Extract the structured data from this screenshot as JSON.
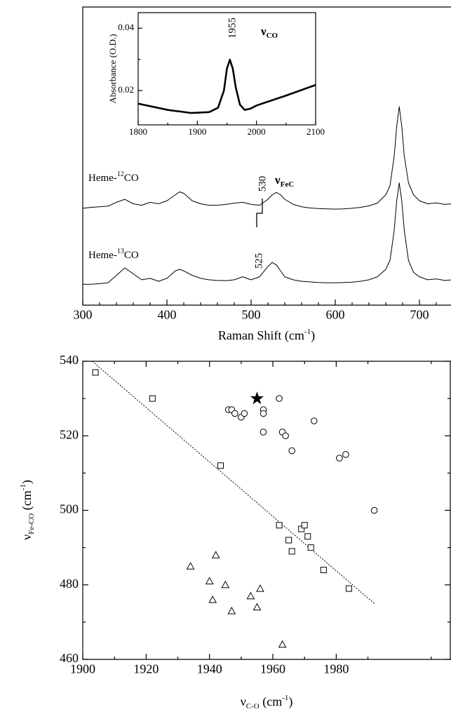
{
  "chart_data": [
    {
      "type": "line",
      "xlabel": {
        "text": "Raman Shift (cm",
        "sup": "-1",
        "end": ")"
      },
      "xlim": [
        300,
        780
      ],
      "ylim": [
        0,
        100
      ],
      "xticks": [
        300,
        400,
        500,
        600,
        700
      ],
      "xminorticks": [
        320,
        340,
        360,
        380,
        420,
        440,
        460,
        480,
        520,
        540,
        560,
        580,
        620,
        640,
        660,
        680,
        720,
        740,
        760
      ],
      "x": [
        300,
        310,
        320,
        330,
        340,
        350,
        360,
        370,
        380,
        390,
        400,
        410,
        415,
        420,
        430,
        440,
        450,
        460,
        470,
        480,
        490,
        500,
        510,
        520,
        525,
        530,
        535,
        540,
        550,
        560,
        570,
        580,
        590,
        600,
        610,
        620,
        630,
        640,
        650,
        660,
        665,
        670,
        673,
        676,
        679,
        682,
        687,
        693,
        700,
        710,
        720,
        730,
        740,
        745,
        750,
        755,
        760,
        765,
        770,
        780
      ],
      "series": [
        {
          "color": "#000000",
          "label": {
            "prefix": "Heme-",
            "sup": "12",
            "suffix": "CO"
          },
          "values": [
            32.5,
            32.8,
            33,
            33.2,
            34.5,
            35.5,
            34,
            33.5,
            34.5,
            34,
            35,
            37,
            38,
            37.5,
            35,
            34,
            33.5,
            33.5,
            33.8,
            34.2,
            34.5,
            33.8,
            33.5,
            35.5,
            37,
            37.8,
            37,
            35.5,
            33.8,
            33,
            32.6,
            32.4,
            32.3,
            32.2,
            32.3,
            32.5,
            32.8,
            33.3,
            34.2,
            37,
            40,
            50,
            60,
            66.6,
            60,
            50,
            41,
            37,
            35,
            34,
            34.3,
            33.8,
            34,
            35,
            38,
            40.7,
            37,
            35,
            34,
            33.8
          ]
        },
        {
          "color": "#000000",
          "label": {
            "prefix": "Heme-",
            "sup": "13",
            "suffix": "CO"
          },
          "values": [
            7,
            7,
            7.2,
            7.5,
            10,
            12.5,
            10.5,
            8.5,
            9,
            8,
            9,
            11.5,
            12,
            11.5,
            10,
            9,
            8.5,
            8.3,
            8.2,
            8.5,
            9.5,
            8.5,
            9.5,
            13,
            14.3,
            13.5,
            11.5,
            9.5,
            8.5,
            8,
            7.8,
            7.6,
            7.5,
            7.5,
            7.6,
            7.7,
            8,
            8.5,
            9.5,
            12,
            15,
            25,
            35,
            41,
            35,
            25,
            15,
            11,
            9.5,
            8.5,
            8.8,
            8.3,
            8.5,
            9.5,
            11,
            12.5,
            10,
            8.5,
            8,
            8
          ]
        }
      ],
      "annotations": [
        "530",
        "525"
      ],
      "band_label": {
        "symbol": "ν",
        "sub": "FeC"
      }
    },
    {
      "type": "line",
      "ylabel": "Absorbance (O.D.)",
      "xlim": [
        1800,
        2100
      ],
      "ylim": [
        0.009,
        0.045
      ],
      "xticks": [
        1800,
        1900,
        2000,
        2100
      ],
      "xminorticks": [
        1850,
        1950,
        2050
      ],
      "yticks": [
        0.02,
        0.04
      ],
      "yminorticks": [
        0.03
      ],
      "x": [
        1800,
        1850,
        1890,
        1920,
        1935,
        1945,
        1950,
        1955,
        1960,
        1965,
        1972,
        1980,
        1990,
        2000,
        2050,
        2100
      ],
      "series": [
        {
          "color": "#000000",
          "values": [
            0.0158,
            0.0138,
            0.0128,
            0.0131,
            0.0145,
            0.02,
            0.027,
            0.0299,
            0.027,
            0.021,
            0.0155,
            0.0138,
            0.0142,
            0.0152,
            0.0184,
            0.0218
          ]
        }
      ],
      "annotation": "1955",
      "band_label": {
        "symbol": "ν",
        "sub": "CO"
      }
    },
    {
      "type": "scatter",
      "xlabel": {
        "symbol": "ν",
        "sub": "C-O",
        "unit": " (cm",
        "sup": "-1",
        "end": ")"
      },
      "ylabel": {
        "symbol": "ν",
        "sub": "Fe-CO",
        "unit": " (cm",
        "sup": "-1",
        "end": ")"
      },
      "xlim": [
        1900,
        2016
      ],
      "ylim": [
        460,
        540
      ],
      "xticks": [
        1900,
        1920,
        1940,
        1960,
        1980
      ],
      "xminorticks": [
        1910,
        1930,
        1950,
        1970,
        1990,
        2010
      ],
      "yticks": [
        460,
        480,
        500,
        520,
        540
      ],
      "yminorticks": [
        470,
        490,
        510,
        530
      ],
      "series": [
        {
          "marker": "square",
          "color": "#000000",
          "x": [
            1904,
            1922,
            1943.5,
            1962,
            1965,
            1966,
            1969,
            1970,
            1971,
            1972,
            1976,
            1984
          ],
          "values": [
            537,
            530,
            512,
            496,
            492,
            489,
            495,
            496,
            493,
            490,
            484,
            479
          ]
        },
        {
          "marker": "circle",
          "color": "#000000",
          "x": [
            1946,
            1947,
            1948,
            1950,
            1951,
            1957,
            1957,
            1957,
            1962,
            1963,
            1964,
            1966,
            1973,
            1981,
            1983,
            1992
          ],
          "values": [
            527,
            527,
            526,
            525,
            526,
            527,
            526,
            521,
            530,
            521,
            520,
            516,
            524,
            514,
            515,
            500
          ]
        },
        {
          "marker": "triangle",
          "color": "#000000",
          "x": [
            1934,
            1940,
            1941,
            1942,
            1945,
            1947,
            1953,
            1955,
            1956,
            1963
          ],
          "values": [
            485,
            481,
            476,
            488,
            480,
            473,
            477,
            474,
            479,
            464
          ]
        },
        {
          "marker": "star",
          "color": "#000000",
          "x": [
            1955
          ],
          "values": [
            530
          ]
        }
      ],
      "fit": {
        "x": [
          1903,
          1992
        ],
        "values": [
          540,
          475
        ]
      }
    }
  ]
}
